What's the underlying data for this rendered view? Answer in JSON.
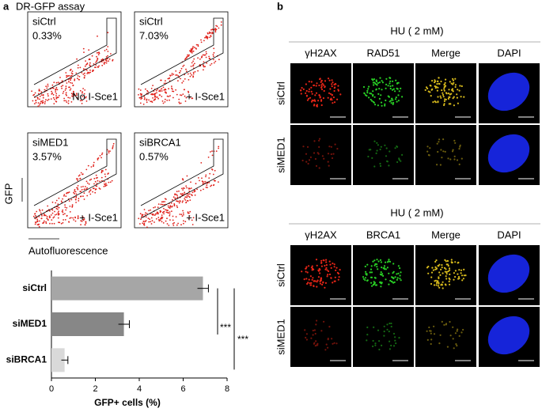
{
  "panel_a": {
    "label": "a",
    "title": "DR-GFP assay",
    "y_axis_label": "GFP",
    "x_axis_label": "Autofluorescence",
    "plots": [
      {
        "sample": "siCtrl",
        "percent": "0.33%",
        "condition": "No I-Sce1"
      },
      {
        "sample": "siCtrl",
        "percent": "7.03%",
        "condition": "+ I-Sce1"
      },
      {
        "sample": "siMED1",
        "percent": "3.57%",
        "condition": "+ I-Sce1"
      },
      {
        "sample": "siBRCA1",
        "percent": "0.57%",
        "condition": "+ I-Sce1"
      }
    ]
  },
  "chart_data": {
    "type": "bar",
    "orientation": "horizontal",
    "categories": [
      "siCtrl",
      "siMED1",
      "siBRCA1"
    ],
    "values": [
      6.9,
      3.3,
      0.6
    ],
    "errors": [
      0.25,
      0.25,
      0.15
    ],
    "colors": [
      "#a6a6a6",
      "#878787",
      "#d9d9d9"
    ],
    "xlim": [
      0,
      8
    ],
    "xticks": [
      0,
      2,
      4,
      6,
      8
    ],
    "xlabel": "GFP+ cells (%)",
    "annotations": [
      "***",
      "***"
    ]
  },
  "panel_b": {
    "label": "b",
    "groups": [
      {
        "title": "HU ( 2 mM)",
        "columns": [
          "γH2AX",
          "RAD51",
          "Merge",
          "DAPI"
        ],
        "rows": [
          "siCtrl",
          "siMED1"
        ]
      },
      {
        "title": "HU ( 2 mM)",
        "columns": [
          "γH2AX",
          "BRCA1",
          "Merge",
          "DAPI"
        ],
        "rows": [
          "siCtrl",
          "siMED1"
        ]
      }
    ]
  }
}
